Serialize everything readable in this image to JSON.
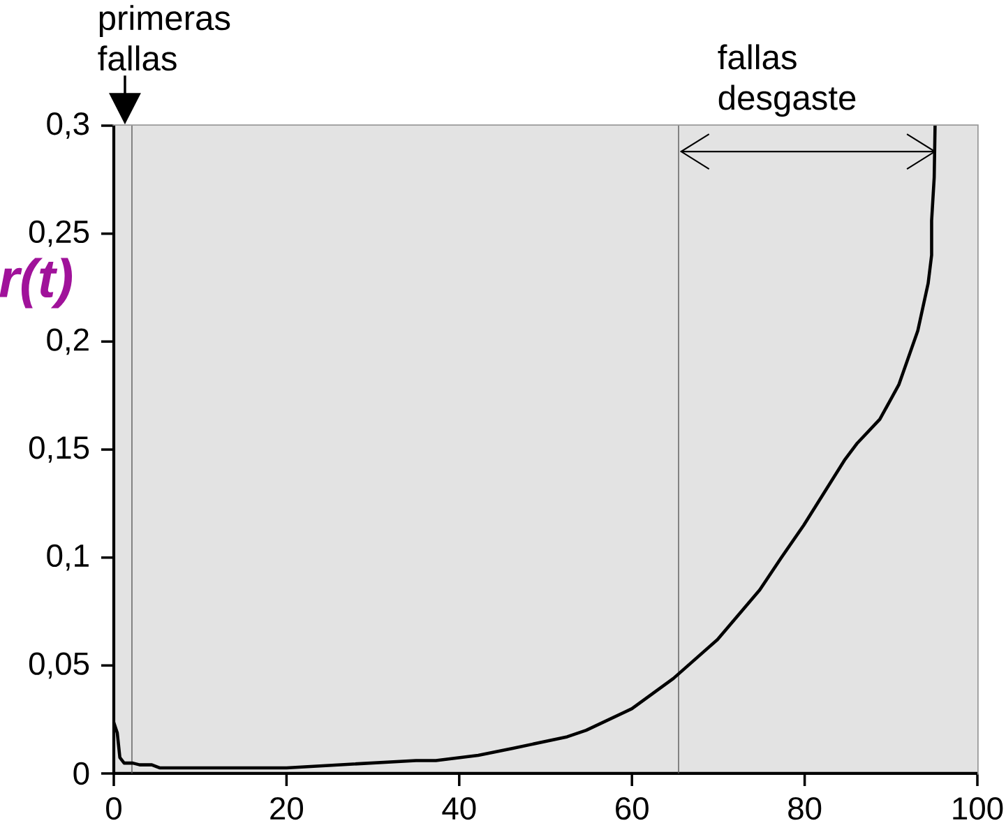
{
  "chart_data": {
    "type": "line",
    "ylabel": "r(t)",
    "xlim": [
      0,
      100
    ],
    "ylim": [
      0,
      0.3
    ],
    "xticks": [
      0,
      20,
      40,
      60,
      80,
      100
    ],
    "yticks": [
      0,
      {
        "value": 0.05,
        "label": "0,05"
      },
      {
        "value": 0.1,
        "label": "0,1"
      },
      {
        "value": 0.15,
        "label": "0,15"
      },
      {
        "value": 0.2,
        "label": "0,2"
      },
      {
        "value": 0.25,
        "label": "0,25"
      },
      {
        "value": 0.3,
        "label": "0,3"
      }
    ],
    "x": [
      0,
      0.4,
      0.7,
      1.2,
      2.2,
      3,
      4.4,
      5.3,
      20,
      35,
      37.3,
      42.2,
      46.2,
      52.5,
      54.7,
      60,
      64.8,
      69.9,
      74.8,
      77.3,
      79.9,
      84.6,
      86.1,
      88.7,
      90.9,
      93.1,
      94.3,
      94.7,
      94.7,
      95.0,
      95.1
    ],
    "values": [
      0.0236,
      0.0188,
      0.0074,
      0.0048,
      0.0048,
      0.004,
      0.004,
      0.0026,
      0.0026,
      0.006,
      0.006,
      0.0084,
      0.0116,
      0.017,
      0.02,
      0.03,
      0.044,
      0.062,
      0.085,
      0.1,
      0.115,
      0.145,
      0.153,
      0.164,
      0.18,
      0.205,
      0.227,
      0.24,
      0.256,
      0.276,
      0.3
    ],
    "color": "#000000",
    "line_style": "solid",
    "marker": "none",
    "ref_lines": [
      {
        "axis": "x",
        "value": 2.1,
        "label": "primeras fallas"
      },
      {
        "axis": "x",
        "value": 65.4
      }
    ],
    "annotations": [
      "fallas desgaste"
    ]
  }
}
